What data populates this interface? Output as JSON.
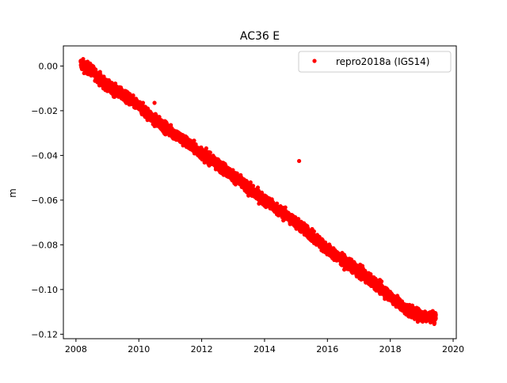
{
  "chart_data": {
    "type": "scatter",
    "title": "AC36 E",
    "xlabel": "",
    "ylabel": "m",
    "xlim": [
      2007.6,
      2020.1
    ],
    "ylim": [
      -0.122,
      0.009
    ],
    "x_ticks": [
      2008,
      2010,
      2012,
      2014,
      2016,
      2018,
      2020
    ],
    "x_tick_labels": [
      "2008",
      "2010",
      "2012",
      "2014",
      "2016",
      "2018",
      "2020"
    ],
    "y_ticks": [
      0.0,
      -0.02,
      -0.04,
      -0.06,
      -0.08,
      -0.1,
      -0.12
    ],
    "y_tick_labels": [
      "0.00",
      "−0.02",
      "−0.04",
      "−0.06",
      "−0.08",
      "−0.10",
      "−0.12"
    ],
    "grid": false,
    "legend_position": "top-right",
    "marker": "dot",
    "series": [
      {
        "name": "repro2018a (IGS14)",
        "color": "#ff0000",
        "trend": {
          "x": [
            2008.15,
            2008.5,
            2009.0,
            2009.5,
            2010.0,
            2010.5,
            2011.0,
            2011.5,
            2012.0,
            2012.5,
            2013.0,
            2013.5,
            2014.0,
            2014.5,
            2015.0,
            2015.5,
            2016.0,
            2016.5,
            2017.0,
            2017.5,
            2018.0,
            2018.5,
            2019.0,
            2019.45
          ],
          "y": [
            0.001,
            -0.002,
            -0.009,
            -0.013,
            -0.018,
            -0.024,
            -0.029,
            -0.034,
            -0.039,
            -0.044,
            -0.049,
            -0.055,
            -0.06,
            -0.065,
            -0.07,
            -0.076,
            -0.082,
            -0.087,
            -0.092,
            -0.097,
            -0.103,
            -0.109,
            -0.112,
            -0.112
          ]
        },
        "spread": 0.0025,
        "outliers": [
          {
            "x": 2015.1,
            "y": -0.0425
          },
          {
            "x": 2010.5,
            "y": -0.0165
          }
        ]
      }
    ]
  }
}
